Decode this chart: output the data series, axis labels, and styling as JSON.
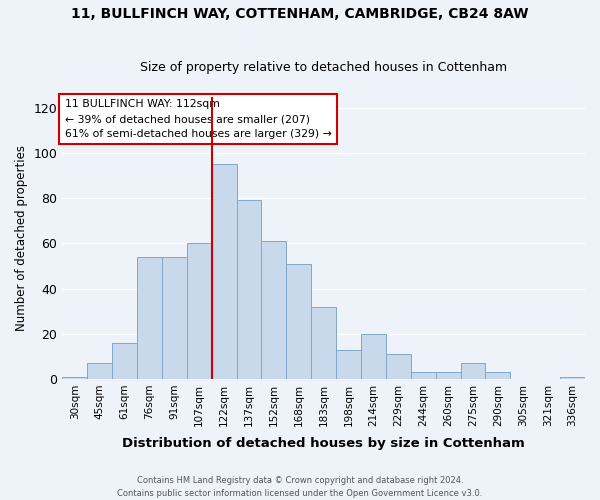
{
  "title1": "11, BULLFINCH WAY, COTTENHAM, CAMBRIDGE, CB24 8AW",
  "title2": "Size of property relative to detached houses in Cottenham",
  "xlabel": "Distribution of detached houses by size in Cottenham",
  "ylabel": "Number of detached properties",
  "categories": [
    "30sqm",
    "45sqm",
    "61sqm",
    "76sqm",
    "91sqm",
    "107sqm",
    "122sqm",
    "137sqm",
    "152sqm",
    "168sqm",
    "183sqm",
    "198sqm",
    "214sqm",
    "229sqm",
    "244sqm",
    "260sqm",
    "275sqm",
    "290sqm",
    "305sqm",
    "321sqm",
    "336sqm"
  ],
  "values": [
    1,
    7,
    16,
    54,
    54,
    60,
    95,
    79,
    61,
    51,
    32,
    13,
    20,
    11,
    3,
    3,
    7,
    3,
    0,
    0,
    1
  ],
  "bar_color": "#c9d9ec",
  "bar_edge_color": "#7fa8cc",
  "vline_x": 6.0,
  "vline_color": "#cc0000",
  "annotation_text": "11 BULLFINCH WAY: 112sqm\n← 39% of detached houses are smaller (207)\n61% of semi-detached houses are larger (329) →",
  "annotation_box_color": "#ffffff",
  "annotation_box_edge": "#cc0000",
  "footnote": "Contains HM Land Registry data © Crown copyright and database right 2024.\nContains public sector information licensed under the Open Government Licence v3.0.",
  "ylim": [
    0,
    125
  ],
  "yticks": [
    0,
    20,
    40,
    60,
    80,
    100,
    120
  ],
  "background_color": "#eef2f9",
  "grid_color": "#ffffff",
  "title_fontsize": 10,
  "subtitle_fontsize": 9
}
